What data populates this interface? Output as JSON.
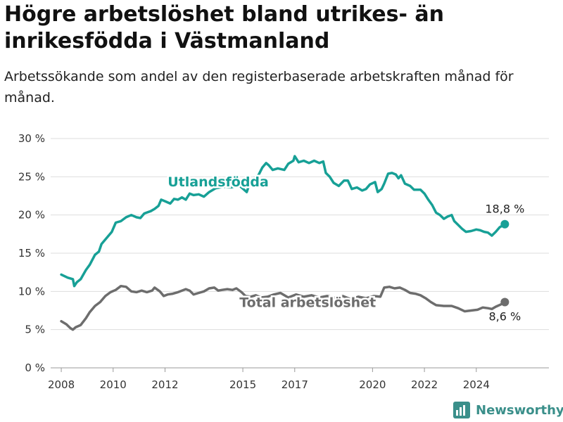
{
  "title": "Högre arbetslöshet bland utrikes- än inrikesfödda i Västmanland",
  "subtitle": "Arbetssökande som andel av den registerbaserade arbetskraften månad för månad.",
  "brand": {
    "name": "Newsworthy"
  },
  "colors": {
    "utlandsfodda": "#17a096",
    "total": "#6d6d6d",
    "grid": "#dddddd",
    "text": "#333333"
  },
  "chart_data": {
    "type": "line",
    "title": "Högre arbetslöshet bland utrikes- än inrikesfödda i Västmanland",
    "subtitle": "Arbetssökande som andel av den registerbaserade arbetskraften månad för månad.",
    "xlabel": "",
    "ylabel": "",
    "xlim": [
      2007.7,
      2026.8
    ],
    "ylim": [
      0,
      30
    ],
    "grid": true,
    "legend": "inline labels",
    "x_ticks": [
      2008,
      2010,
      2012,
      2015,
      2017,
      2020,
      2022,
      2024
    ],
    "x_tick_labels": [
      "2008",
      "2010",
      "2012",
      "2015",
      "2017",
      "2020",
      "2022",
      "2024"
    ],
    "y_ticks": [
      0,
      5,
      10,
      15,
      20,
      25,
      30
    ],
    "y_tick_labels": [
      "0 %",
      "5 %",
      "10 %",
      "15 %",
      "20 %",
      "25 %",
      "30 %"
    ],
    "series": [
      {
        "name": "Utlandsfödda",
        "color": "#17a096",
        "end_label": "18,8 %",
        "points": [
          [
            2008.0,
            12.2
          ],
          [
            2008.25,
            11.8
          ],
          [
            2008.45,
            11.6
          ],
          [
            2008.5,
            10.7
          ],
          [
            2008.6,
            11.2
          ],
          [
            2008.75,
            11.6
          ],
          [
            2008.95,
            12.8
          ],
          [
            2009.1,
            13.5
          ],
          [
            2009.3,
            14.8
          ],
          [
            2009.45,
            15.2
          ],
          [
            2009.55,
            16.2
          ],
          [
            2009.75,
            17.0
          ],
          [
            2009.95,
            17.8
          ],
          [
            2010.1,
            19.0
          ],
          [
            2010.3,
            19.2
          ],
          [
            2010.5,
            19.7
          ],
          [
            2010.7,
            20.0
          ],
          [
            2010.9,
            19.7
          ],
          [
            2011.05,
            19.6
          ],
          [
            2011.2,
            20.2
          ],
          [
            2011.45,
            20.5
          ],
          [
            2011.6,
            20.8
          ],
          [
            2011.75,
            21.2
          ],
          [
            2011.85,
            22.0
          ],
          [
            2012.0,
            21.8
          ],
          [
            2012.2,
            21.5
          ],
          [
            2012.35,
            22.1
          ],
          [
            2012.5,
            22.0
          ],
          [
            2012.65,
            22.3
          ],
          [
            2012.8,
            22.0
          ],
          [
            2012.95,
            22.8
          ],
          [
            2013.1,
            22.6
          ],
          [
            2013.3,
            22.7
          ],
          [
            2013.5,
            22.4
          ],
          [
            2013.7,
            23.0
          ],
          [
            2013.95,
            23.5
          ],
          [
            2014.25,
            23.7
          ],
          [
            2014.55,
            23.6
          ],
          [
            2014.85,
            23.9
          ],
          [
            2015.15,
            23.0
          ],
          [
            2015.3,
            24.5
          ],
          [
            2015.6,
            25.2
          ],
          [
            2015.75,
            26.2
          ],
          [
            2015.9,
            26.8
          ],
          [
            2016.0,
            26.5
          ],
          [
            2016.15,
            25.9
          ],
          [
            2016.35,
            26.1
          ],
          [
            2016.6,
            25.9
          ],
          [
            2016.75,
            26.7
          ],
          [
            2016.95,
            27.1
          ],
          [
            2017.0,
            27.7
          ],
          [
            2017.15,
            26.9
          ],
          [
            2017.35,
            27.1
          ],
          [
            2017.55,
            26.8
          ],
          [
            2017.75,
            27.1
          ],
          [
            2017.95,
            26.8
          ],
          [
            2018.1,
            27.0
          ],
          [
            2018.2,
            25.5
          ],
          [
            2018.35,
            25.0
          ],
          [
            2018.5,
            24.2
          ],
          [
            2018.7,
            23.8
          ],
          [
            2018.9,
            24.5
          ],
          [
            2019.05,
            24.5
          ],
          [
            2019.2,
            23.4
          ],
          [
            2019.4,
            23.6
          ],
          [
            2019.6,
            23.2
          ],
          [
            2019.75,
            23.4
          ],
          [
            2019.9,
            24.0
          ],
          [
            2020.1,
            24.3
          ],
          [
            2020.2,
            23.0
          ],
          [
            2020.35,
            23.4
          ],
          [
            2020.45,
            24.1
          ],
          [
            2020.6,
            25.4
          ],
          [
            2020.75,
            25.5
          ],
          [
            2020.9,
            25.3
          ],
          [
            2021.0,
            24.8
          ],
          [
            2021.1,
            25.2
          ],
          [
            2021.25,
            24.1
          ],
          [
            2021.45,
            23.8
          ],
          [
            2021.6,
            23.3
          ],
          [
            2021.85,
            23.3
          ],
          [
            2022.0,
            22.8
          ],
          [
            2022.15,
            22.0
          ],
          [
            2022.3,
            21.3
          ],
          [
            2022.45,
            20.3
          ],
          [
            2022.6,
            20.0
          ],
          [
            2022.75,
            19.5
          ],
          [
            2022.9,
            19.8
          ],
          [
            2023.05,
            20.0
          ],
          [
            2023.15,
            19.2
          ],
          [
            2023.3,
            18.7
          ],
          [
            2023.45,
            18.2
          ],
          [
            2023.6,
            17.8
          ],
          [
            2023.8,
            17.9
          ],
          [
            2024.0,
            18.1
          ],
          [
            2024.15,
            18.0
          ],
          [
            2024.3,
            17.8
          ],
          [
            2024.45,
            17.7
          ],
          [
            2024.6,
            17.3
          ],
          [
            2024.75,
            17.8
          ],
          [
            2024.9,
            18.4
          ],
          [
            2025.0,
            18.6
          ],
          [
            2025.1,
            18.8
          ]
        ]
      },
      {
        "name": "Total arbetslöshet",
        "color": "#6d6d6d",
        "end_label": "8,6 %",
        "points": [
          [
            2008.0,
            6.1
          ],
          [
            2008.2,
            5.7
          ],
          [
            2008.35,
            5.2
          ],
          [
            2008.45,
            5.0
          ],
          [
            2008.55,
            5.3
          ],
          [
            2008.75,
            5.6
          ],
          [
            2008.95,
            6.5
          ],
          [
            2009.1,
            7.3
          ],
          [
            2009.3,
            8.1
          ],
          [
            2009.5,
            8.6
          ],
          [
            2009.7,
            9.4
          ],
          [
            2009.9,
            9.9
          ],
          [
            2010.1,
            10.2
          ],
          [
            2010.3,
            10.7
          ],
          [
            2010.5,
            10.6
          ],
          [
            2010.7,
            10.0
          ],
          [
            2010.9,
            9.9
          ],
          [
            2011.1,
            10.1
          ],
          [
            2011.3,
            9.9
          ],
          [
            2011.5,
            10.1
          ],
          [
            2011.6,
            10.5
          ],
          [
            2011.8,
            10.0
          ],
          [
            2011.95,
            9.4
          ],
          [
            2012.1,
            9.6
          ],
          [
            2012.3,
            9.7
          ],
          [
            2012.5,
            9.9
          ],
          [
            2012.65,
            10.1
          ],
          [
            2012.8,
            10.3
          ],
          [
            2012.95,
            10.1
          ],
          [
            2013.1,
            9.6
          ],
          [
            2013.3,
            9.8
          ],
          [
            2013.5,
            10.0
          ],
          [
            2013.7,
            10.4
          ],
          [
            2013.9,
            10.5
          ],
          [
            2014.05,
            10.1
          ],
          [
            2014.2,
            10.2
          ],
          [
            2014.4,
            10.3
          ],
          [
            2014.6,
            10.2
          ],
          [
            2014.75,
            10.4
          ],
          [
            2014.95,
            9.9
          ],
          [
            2015.1,
            9.4
          ],
          [
            2015.3,
            9.3
          ],
          [
            2015.5,
            9.5
          ],
          [
            2015.7,
            9.2
          ],
          [
            2015.95,
            9.3
          ],
          [
            2016.2,
            9.6
          ],
          [
            2016.45,
            9.8
          ],
          [
            2016.75,
            9.2
          ],
          [
            2017.05,
            9.6
          ],
          [
            2017.35,
            9.3
          ],
          [
            2017.65,
            9.5
          ],
          [
            2017.95,
            9.2
          ],
          [
            2018.25,
            9.4
          ],
          [
            2018.55,
            9.2
          ],
          [
            2018.85,
            9.4
          ],
          [
            2019.15,
            9.0
          ],
          [
            2019.45,
            9.3
          ],
          [
            2019.75,
            9.1
          ],
          [
            2020.05,
            9.4
          ],
          [
            2020.3,
            9.3
          ],
          [
            2020.45,
            10.5
          ],
          [
            2020.65,
            10.6
          ],
          [
            2020.85,
            10.4
          ],
          [
            2021.05,
            10.5
          ],
          [
            2021.25,
            10.2
          ],
          [
            2021.45,
            9.8
          ],
          [
            2021.65,
            9.7
          ],
          [
            2021.85,
            9.5
          ],
          [
            2022.05,
            9.1
          ],
          [
            2022.25,
            8.6
          ],
          [
            2022.45,
            8.2
          ],
          [
            2022.75,
            8.1
          ],
          [
            2023.05,
            8.1
          ],
          [
            2023.3,
            7.8
          ],
          [
            2023.55,
            7.4
          ],
          [
            2023.8,
            7.5
          ],
          [
            2024.05,
            7.6
          ],
          [
            2024.25,
            7.9
          ],
          [
            2024.45,
            7.8
          ],
          [
            2024.6,
            7.7
          ],
          [
            2024.75,
            8.0
          ],
          [
            2024.95,
            8.3
          ],
          [
            2025.1,
            8.6
          ]
        ]
      }
    ]
  }
}
